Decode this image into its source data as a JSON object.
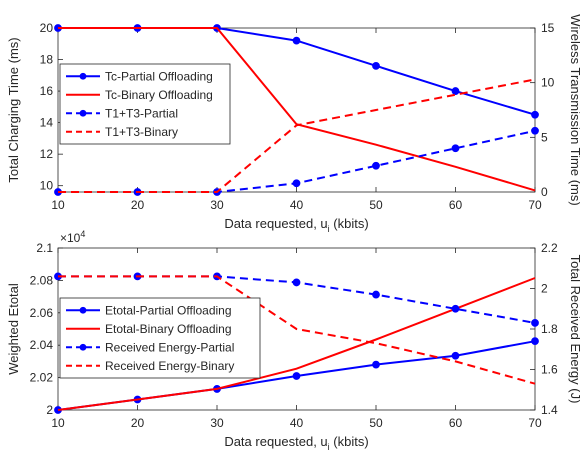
{
  "chart_data": [
    {
      "type": "line",
      "xlabel": "Data requested, u",
      "xlabel_sub": "i",
      "xlabel_unit": " (kbits)",
      "ylabel": "Total Charging Time (ms)",
      "ylabel_right": "Wireless Transmission Time (ms)",
      "x": [
        10,
        20,
        30,
        40,
        50,
        60,
        70
      ],
      "xlim": [
        10,
        70
      ],
      "xticks": [
        "10",
        "20",
        "30",
        "40",
        "50",
        "60",
        "70"
      ],
      "ylim": [
        9.6,
        20
      ],
      "yticks": [
        "10",
        "12",
        "14",
        "16",
        "18",
        "20"
      ],
      "ylim_right": [
        0,
        15
      ],
      "yticks_right": [
        "0",
        "5",
        "10",
        "15"
      ],
      "grid": false,
      "legend_position": "center-left",
      "series": [
        {
          "name": "Tc-Partial Offloading",
          "axis": "left",
          "color": "#0000ff",
          "dash": "solid",
          "marker": true,
          "values": [
            20,
            20,
            20,
            19.2,
            17.6,
            16.0,
            14.5
          ]
        },
        {
          "name": "Tc-Binary Offloading",
          "axis": "left",
          "color": "#ff0000",
          "dash": "solid",
          "marker": false,
          "values": [
            20,
            20,
            20,
            13.9,
            12.6,
            11.2,
            9.7
          ]
        },
        {
          "name": "T1+T3-Partial",
          "axis": "right",
          "color": "#0000ff",
          "dash": "dashed",
          "marker": true,
          "values": [
            0,
            0,
            0,
            0.8,
            2.4,
            4.0,
            5.6
          ]
        },
        {
          "name": "T1+T3-Binary",
          "axis": "right",
          "color": "#ff0000",
          "dash": "dashed",
          "marker": false,
          "values": [
            0,
            0,
            0,
            6.1,
            7.5,
            8.9,
            10.3
          ]
        }
      ]
    },
    {
      "type": "line",
      "xlabel": "Data requested, u",
      "xlabel_sub": "i",
      "xlabel_unit": " (kbits)",
      "ylabel": "Weighted Etotal",
      "ylabel_right": "Total Received Energy (J)",
      "y_exponent_base": "×10",
      "y_exponent_power": "4",
      "x": [
        10,
        20,
        30,
        40,
        50,
        60,
        70
      ],
      "xlim": [
        10,
        70
      ],
      "xticks": [
        "10",
        "20",
        "30",
        "40",
        "50",
        "60",
        "70"
      ],
      "ylim": [
        2.0,
        2.1
      ],
      "yticks": [
        "2",
        "2.02",
        "2.04",
        "2.06",
        "2.08",
        "2.1"
      ],
      "ylim_right": [
        1.4,
        2.2
      ],
      "yticks_right": [
        "1.4",
        "1.6",
        "1.8",
        "2",
        "2.2"
      ],
      "grid": false,
      "legend_position": "center-left",
      "series": [
        {
          "name": "Etotal-Partial Offloading",
          "axis": "left",
          "color": "#0000ff",
          "dash": "solid",
          "marker": true,
          "values": [
            2.0,
            2.0065,
            2.013,
            2.021,
            2.028,
            2.0335,
            2.0425
          ]
        },
        {
          "name": "Etotal-Binary Offloading",
          "axis": "left",
          "color": "#ff0000",
          "dash": "solid",
          "marker": false,
          "values": [
            2.0,
            2.0065,
            2.013,
            2.0255,
            2.0435,
            2.0625,
            2.0815
          ]
        },
        {
          "name": "Received Energy-Partial",
          "axis": "right",
          "color": "#0000ff",
          "dash": "dashed",
          "marker": true,
          "values": [
            2.06,
            2.06,
            2.06,
            2.03,
            1.97,
            1.9,
            1.83
          ]
        },
        {
          "name": "Received Energy-Binary",
          "axis": "right",
          "color": "#ff0000",
          "dash": "dashed",
          "marker": false,
          "values": [
            2.06,
            2.06,
            2.06,
            1.8,
            1.73,
            1.64,
            1.53
          ]
        }
      ]
    }
  ]
}
